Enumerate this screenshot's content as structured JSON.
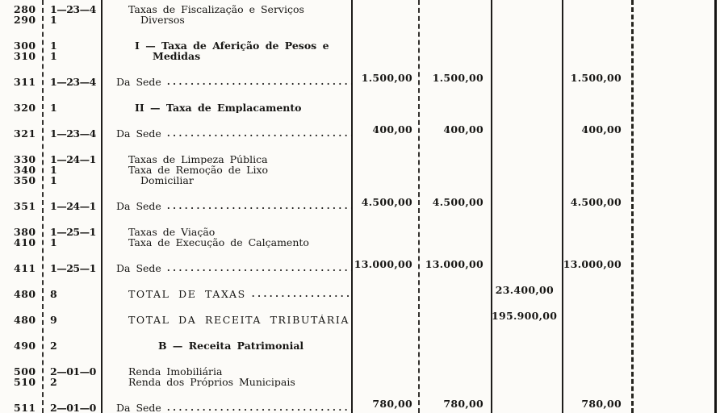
{
  "table": {
    "leader_dots": "......................................................................",
    "sections": [
      {
        "rows": [
          {
            "code": "280",
            "cls": "1—23—4",
            "desc": "Taxas de Fiscalização e Serviços",
            "ind": 1
          },
          {
            "code": "290",
            "cls": "1",
            "desc": "Diversos",
            "ind": 3
          }
        ]
      },
      {
        "rows": [
          {
            "code": "300",
            "cls": "1",
            "desc": "I — Taxa de Aferição de Pesos e",
            "ind": 2,
            "bold": true
          },
          {
            "code": "310",
            "cls": "1",
            "desc": "Medidas",
            "ind": 4,
            "bold": true
          }
        ]
      },
      {
        "rows": [
          {
            "code": "311",
            "cls": "1—23—4",
            "desc": "Da Sede",
            "ind": 0,
            "leaders": true,
            "values": {
              "a": "1.500,00",
              "b": "1.500,00",
              "c": "",
              "d": "1.500,00",
              "e": ""
            }
          }
        ]
      },
      {
        "rows": [
          {
            "code": "320",
            "cls": "1",
            "desc": "II — Taxa de Emplacamento",
            "ind": 2,
            "bold": true
          }
        ]
      },
      {
        "rows": [
          {
            "code": "321",
            "cls": "1—23—4",
            "desc": "Da Sede",
            "ind": 0,
            "leaders": true,
            "values": {
              "a": "400,00",
              "b": "400,00",
              "c": "",
              "d": "400,00",
              "e": ""
            }
          }
        ]
      },
      {
        "rows": [
          {
            "code": "330",
            "cls": "1—24—1",
            "desc": "Taxas de Limpeza Pública",
            "ind": 1
          },
          {
            "code": "340",
            "cls": "1",
            "desc": "Taxa de Remoção de Lixo",
            "ind": 1
          },
          {
            "code": "350",
            "cls": "1",
            "desc": "Domiciliar",
            "ind": 3
          }
        ]
      },
      {
        "rows": [
          {
            "code": "351",
            "cls": "1—24—1",
            "desc": "Da Sede",
            "ind": 0,
            "leaders": true,
            "values": {
              "a": "4.500,00",
              "b": "4.500,00",
              "c": "",
              "d": "4.500,00",
              "e": ""
            }
          }
        ]
      },
      {
        "rows": [
          {
            "code": "380",
            "cls": "1—25—1",
            "desc": "Taxas de Viação",
            "ind": 1
          },
          {
            "code": "410",
            "cls": "1",
            "desc": "Taxa de Execução de Calçamento",
            "ind": 1
          }
        ]
      },
      {
        "rows": [
          {
            "code": "411",
            "cls": "1—25—1",
            "desc": "Da Sede",
            "ind": 0,
            "leaders": true,
            "values": {
              "a": "13.000,00",
              "b": "13.000,00",
              "c": "",
              "d": "13.000,00",
              "e": ""
            }
          }
        ]
      },
      {
        "rows": [
          {
            "code": "480",
            "cls": "8",
            "desc": "TOTAL DE TAXAS",
            "ind": 1,
            "ls": true,
            "leaders": true,
            "values": {
              "a": "",
              "b": "",
              "c": "23.400,00",
              "d": "",
              "e": ""
            }
          }
        ]
      },
      {
        "rows": [
          {
            "code": "480",
            "cls": "9",
            "desc": "TOTAL DA RECEITA TRIBUTÁRIA",
            "ind": 1,
            "ls": true,
            "values": {
              "a": "",
              "b": "",
              "c": "195.900,00",
              "d": "",
              "e": ""
            }
          }
        ]
      },
      {
        "rows": [
          {
            "code": "490",
            "cls": "2",
            "desc": "B — Receita Patrimonial",
            "ind": 5,
            "bold": true
          }
        ]
      },
      {
        "rows": [
          {
            "code": "500",
            "cls": "2—01—0",
            "desc": "Renda Imobiliária",
            "ind": 1
          },
          {
            "code": "510",
            "cls": "2",
            "desc": "Renda dos Próprios Municipais",
            "ind": 1
          }
        ]
      },
      {
        "rows": [
          {
            "code": "511",
            "cls": "2—01—0",
            "desc": "Da Sede",
            "ind": 0,
            "leaders": true,
            "values": {
              "a": "780,00",
              "b": "780,00",
              "c": "",
              "d": "780,00",
              "e": ""
            }
          }
        ]
      }
    ]
  }
}
